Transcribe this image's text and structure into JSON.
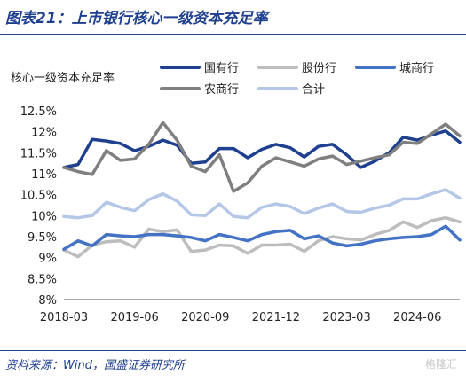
{
  "header": {
    "title": "图表21：上市银行核心一级资本充足率"
  },
  "footer": {
    "source": "资料来源：Wind，国盛证券研究所",
    "watermark": "格隆汇"
  },
  "chart_data": {
    "type": "line",
    "ylabel": "核心一级资本充足率",
    "ylim": [
      8,
      12.5
    ],
    "ytick_labels": [
      "8%",
      "8.5%",
      "9%",
      "9.5%",
      "10%",
      "10.5%",
      "11%",
      "11.5%",
      "12%",
      "12.5%"
    ],
    "ytick_values": [
      8,
      8.5,
      9,
      9.5,
      10,
      10.5,
      11,
      11.5,
      12,
      12.5
    ],
    "xtick_labels": [
      "2018-03",
      "2019-06",
      "2020-09",
      "2021-12",
      "2023-03",
      "2024-06"
    ],
    "xtick_index": [
      0,
      5,
      10,
      15,
      20,
      25
    ],
    "legend_placement": "top",
    "grid": false,
    "x": [
      "2018-03",
      "2018-06",
      "2018-09",
      "2018-12",
      "2019-03",
      "2019-06",
      "2019-09",
      "2019-12",
      "2020-03",
      "2020-06",
      "2020-09",
      "2020-12",
      "2021-03",
      "2021-06",
      "2021-09",
      "2021-12",
      "2022-03",
      "2022-06",
      "2022-09",
      "2022-12",
      "2023-03",
      "2023-06",
      "2023-09",
      "2023-12",
      "2024-03",
      "2024-06",
      "2024-09",
      "2024-12",
      "2025-03"
    ],
    "series": [
      {
        "name": "国有行",
        "color": "#1f3f8f",
        "width": 3.5,
        "values": [
          11.15,
          11.22,
          11.82,
          11.78,
          11.72,
          11.55,
          11.65,
          11.8,
          11.68,
          11.25,
          11.28,
          11.6,
          11.6,
          11.38,
          11.58,
          11.7,
          11.62,
          11.4,
          11.65,
          11.7,
          11.45,
          11.15,
          11.3,
          11.5,
          11.87,
          11.8,
          11.92,
          12.02,
          11.75
        ]
      },
      {
        "name": "股份行",
        "color": "#bdbdbd",
        "width": 3.5,
        "values": [
          9.18,
          9.02,
          9.3,
          9.38,
          9.4,
          9.25,
          9.68,
          9.62,
          9.66,
          9.15,
          9.18,
          9.3,
          9.28,
          9.1,
          9.3,
          9.3,
          9.32,
          9.15,
          9.4,
          9.5,
          9.45,
          9.42,
          9.55,
          9.65,
          9.85,
          9.72,
          9.88,
          9.95,
          9.85
        ]
      },
      {
        "name": "城商行",
        "color": "#4472c4",
        "width": 3.5,
        "values": [
          9.2,
          9.4,
          9.28,
          9.55,
          9.52,
          9.5,
          9.55,
          9.55,
          9.52,
          9.48,
          9.4,
          9.55,
          9.48,
          9.4,
          9.55,
          9.62,
          9.65,
          9.45,
          9.52,
          9.35,
          9.28,
          9.32,
          9.4,
          9.45,
          9.48,
          9.5,
          9.55,
          9.75,
          9.42
        ]
      },
      {
        "name": "农商行",
        "color": "#7f7f7f",
        "width": 3.5,
        "values": [
          11.15,
          11.05,
          10.98,
          11.55,
          11.32,
          11.35,
          11.7,
          12.22,
          11.8,
          11.18,
          11.05,
          11.45,
          10.58,
          10.78,
          11.18,
          11.38,
          11.28,
          11.18,
          11.35,
          11.42,
          11.22,
          11.3,
          11.38,
          11.45,
          11.75,
          11.72,
          11.95,
          12.18,
          11.9
        ]
      },
      {
        "name": "合计",
        "color": "#b4c7e7",
        "width": 3.5,
        "values": [
          9.98,
          9.95,
          10.0,
          10.32,
          10.2,
          10.12,
          10.38,
          10.52,
          10.35,
          10.02,
          10.0,
          10.28,
          9.98,
          9.95,
          10.2,
          10.28,
          10.22,
          10.05,
          10.18,
          10.28,
          10.1,
          10.08,
          10.18,
          10.25,
          10.4,
          10.4,
          10.52,
          10.62,
          10.42
        ]
      }
    ]
  }
}
